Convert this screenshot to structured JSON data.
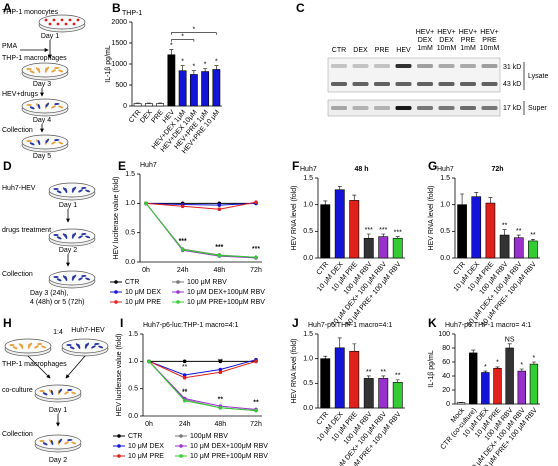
{
  "panel_letters": [
    "A",
    "B",
    "C",
    "D",
    "E",
    "F",
    "G",
    "H",
    "I",
    "J",
    "K"
  ],
  "panel_a": {
    "steps": [
      "THP-1 monocytes",
      "THP-1 macrophages",
      "HEV+drugs",
      "Collection"
    ],
    "days": [
      "Day 1",
      "Day 3",
      "Day 4",
      "Day 5"
    ],
    "pma": "PMA"
  },
  "panel_c": {
    "lanes": [
      [
        "CTR"
      ],
      [
        "DEX"
      ],
      [
        "PRE"
      ],
      [
        "HEV"
      ],
      [
        "HEV+",
        "DEX",
        "1mM"
      ],
      [
        "HEV+",
        "DEX",
        "10mM"
      ],
      [
        "HEV+",
        "PRE",
        "1mM"
      ],
      [
        "HEV+",
        "PRE",
        "10mM"
      ]
    ],
    "sizes": [
      "31 kD",
      "43 kD",
      "17 kD"
    ],
    "fractions": [
      "Lysate",
      "Super"
    ]
  },
  "panel_d": {
    "steps": [
      "Huh7-HEV",
      "drugs treatment",
      "Collection"
    ],
    "days": [
      "Day 1",
      "Day 2"
    ],
    "final_day": [
      "Day 3 (24h),",
      "4 (48h) or 5 (72h)"
    ]
  },
  "panel_h": {
    "ratio": "1:4",
    "cells": [
      "THP-1 macrophages",
      "Huh7-HEV"
    ],
    "steps": [
      "co-culture",
      "Collection"
    ],
    "days": [
      "Day 1",
      "Day 2"
    ]
  },
  "chart_data": [
    {
      "type": "bar",
      "title": "THP-1",
      "y_label": "IL-1β pg/mL",
      "categories": [
        "CTR",
        "DEX",
        "PRE",
        "HEV",
        "HEV+DEX 1μM",
        "HEV+DEX 10μM",
        "HEV+PRE 1μM",
        "HEV+PRE 10 μM"
      ],
      "values": [
        60,
        60,
        60,
        1220,
        840,
        750,
        820,
        870
      ],
      "errors": [
        10,
        10,
        10,
        120,
        120,
        90,
        70,
        90
      ],
      "colors": [
        "#ffffff",
        "#ffffff",
        "#ffffff",
        "#000000",
        "#1414d8",
        "#1414d8",
        "#1414d8",
        "#1414d8"
      ],
      "significance": [
        null,
        null,
        null,
        "*",
        "*",
        "*",
        "*",
        "*"
      ],
      "brackets": [
        {
          "between": [
            "HEV",
            "HEV+DEX 10μM"
          ],
          "text": "*"
        },
        {
          "between": [
            "HEV",
            "HEV+PRE 10 μM"
          ],
          "text": "*"
        }
      ],
      "ylim": [
        0,
        2000
      ],
      "yticks": [
        0,
        500,
        1000,
        1500,
        2000
      ]
    },
    {
      "type": "line",
      "title": "Huh7",
      "y_label": "HEV luciferase value (fold)",
      "categories": [
        "0h",
        "24h",
        "48h",
        "72h"
      ],
      "ylim": [
        0,
        1.5
      ],
      "yticks": [
        {
          "value": 0,
          "label": "0.0"
        },
        {
          "value": 0.5,
          "label": "0.5"
        },
        {
          "value": 1,
          "label": "1.0"
        },
        {
          "value": 1.5,
          "label": "1.5"
        }
      ],
      "series": [
        {
          "name": "CTR",
          "color": "#000000",
          "values": [
            1,
            1,
            1,
            1
          ]
        },
        {
          "name": "10 μM DEX",
          "color": "#1414d8",
          "values": [
            1,
            0.98,
            0.97,
            1.0
          ]
        },
        {
          "name": "10 μM PRE",
          "color": "#e0201b",
          "values": [
            1,
            0.95,
            0.9,
            1.02
          ]
        },
        {
          "name": "100 μM RBV",
          "color": "#777777",
          "values": [
            1,
            0.22,
            0.12,
            0.08
          ],
          "significance": [
            null,
            "***",
            "***",
            "***"
          ]
        },
        {
          "name": "10 μM DEX+100μM RBV",
          "color": "#9932cc",
          "values": [
            1,
            0.2,
            0.1,
            0.07
          ]
        },
        {
          "name": "10 μM PRE+100μM RBV",
          "color": "#33cc33",
          "values": [
            1,
            0.21,
            0.11,
            0.08
          ],
          "significance": [
            null,
            "***",
            "***",
            "***"
          ]
        }
      ]
    },
    {
      "type": "bar",
      "title": "Huh7",
      "subtitle": "48 h",
      "y_label": "HEV RNA level (fold)",
      "categories": [
        "CTR",
        "10 μM DEX",
        "10 μM PRE",
        "100 μM RBV",
        "10 μM DEX+ 100 μM RBV",
        "10 μM PRE+ 100 μM RBV"
      ],
      "values": [
        1.0,
        1.28,
        1.08,
        0.37,
        0.4,
        0.37
      ],
      "errors": [
        0.07,
        0.06,
        0.1,
        0.08,
        0.05,
        0.03
      ],
      "colors": [
        "#000000",
        "#1414d8",
        "#e0201b",
        "#333333",
        "#9932cc",
        "#33cc33"
      ],
      "significance": [
        null,
        null,
        null,
        "***",
        "***",
        "***"
      ],
      "ylim": [
        0,
        1.5
      ],
      "yticks": [
        {
          "value": 0,
          "label": "0.0"
        },
        {
          "value": 0.5,
          "label": "0.5"
        },
        {
          "value": 1,
          "label": "1.0"
        },
        {
          "value": 1.5,
          "label": "1.5"
        }
      ]
    },
    {
      "type": "bar",
      "title": "Huh7",
      "subtitle": "72h",
      "y_label": "HEV RNA level (fold)",
      "categories": [
        "CTR",
        "10 μM DEX",
        "10 μM PRE",
        "100 μM RBV",
        "10 μM DEX+ 100 μM RBV",
        "10 μM PRE+ 100 μM RBV"
      ],
      "values": [
        1.0,
        1.15,
        1.03,
        0.43,
        0.38,
        0.32
      ],
      "errors": [
        0.2,
        0.08,
        0.1,
        0.1,
        0.05,
        0.03
      ],
      "colors": [
        "#000000",
        "#1414d8",
        "#e0201b",
        "#333333",
        "#9932cc",
        "#33cc33"
      ],
      "significance": [
        null,
        null,
        null,
        "**",
        "**",
        "**"
      ],
      "ylim": [
        0,
        1.5
      ],
      "yticks": [
        {
          "value": 0,
          "label": "0.0"
        },
        {
          "value": 0.5,
          "label": "0.5"
        },
        {
          "value": 1,
          "label": "1.0"
        },
        {
          "value": 1.5,
          "label": "1.5"
        }
      ]
    },
    {
      "type": "line",
      "title": "Huh7-p6-luc:THP-1 macro=4:1",
      "y_label": "HEV luciferase value (fold)",
      "categories": [
        "0h",
        "24h",
        "48h",
        "72h"
      ],
      "ylim": [
        0,
        1.5
      ],
      "yticks": [
        {
          "value": 0,
          "label": "0.0"
        },
        {
          "value": 0.5,
          "label": "0.5"
        },
        {
          "value": 1,
          "label": "1.0"
        },
        {
          "value": 1.5,
          "label": "1.5"
        }
      ],
      "series": [
        {
          "name": "CTR",
          "color": "#000000",
          "values": [
            1,
            1,
            1,
            1
          ]
        },
        {
          "name": "10 μM DEX",
          "color": "#1414d8",
          "values": [
            1,
            0.75,
            0.85,
            1.03
          ],
          "significance": [
            null,
            "**",
            "**",
            null
          ]
        },
        {
          "name": "10 μM PRE",
          "color": "#e0201b",
          "values": [
            1,
            0.7,
            0.8,
            1.0
          ]
        },
        {
          "name": "100μM RBV",
          "color": "#777777",
          "values": [
            1,
            0.3,
            0.15,
            0.1
          ],
          "significance": [
            null,
            "**",
            "**",
            "**"
          ]
        },
        {
          "name": "10 μM DEX+100μM RBV",
          "color": "#9932cc",
          "values": [
            1,
            0.32,
            0.18,
            0.12
          ]
        },
        {
          "name": "10 μM PRE+100μM RBV",
          "color": "#33cc33",
          "values": [
            1,
            0.28,
            0.15,
            0.1
          ],
          "significance": [
            null,
            "**",
            "**",
            "**"
          ]
        }
      ]
    },
    {
      "type": "bar",
      "title": "Huh7-p6:THP-1 macro=4:1",
      "y_label": "HEV RNA level (fold)",
      "categories": [
        "CTR",
        "10 μM DEX",
        "10 μM PRE",
        "100 μM RBV",
        "10 μM DEX+ 100 μM RBV",
        "10 μM PRE+ 100 μM RBV"
      ],
      "values": [
        1.0,
        1.22,
        1.15,
        0.6,
        0.6,
        0.52
      ],
      "errors": [
        0.05,
        0.2,
        0.15,
        0.05,
        0.05,
        0.05
      ],
      "colors": [
        "#000000",
        "#1414d8",
        "#e0201b",
        "#333333",
        "#9932cc",
        "#33cc33"
      ],
      "significance": [
        null,
        null,
        null,
        "**",
        "**",
        "**"
      ],
      "ylim": [
        0,
        1.5
      ],
      "yticks": [
        {
          "value": 0,
          "label": "0.0"
        },
        {
          "value": 0.5,
          "label": "0.5"
        },
        {
          "value": 1,
          "label": "1.0"
        },
        {
          "value": 1.5,
          "label": "1.5"
        }
      ]
    },
    {
      "type": "bar",
      "title": "Huh7-p6:THP-1 macro= 4:1",
      "y_label": "IL-1β pg/mL",
      "categories": [
        "Mock",
        "CTR (co-culture)",
        "10 μM DEX",
        "10 μM PRE",
        "100 μM RBV",
        "10 μM DEX+ 100 μM RBV",
        "10 μM PRE+ 100 μM RBV"
      ],
      "values": [
        2,
        73,
        45,
        51,
        80,
        47,
        57
      ],
      "errors": [
        0.5,
        4,
        2,
        2,
        6,
        3,
        3
      ],
      "colors": [
        "#ffffff",
        "#000000",
        "#1414d8",
        "#e0201b",
        "#333333",
        "#9932cc",
        "#33cc33"
      ],
      "significance": [
        null,
        null,
        "*",
        "*",
        "NS",
        "*",
        "*"
      ],
      "ylim": [
        0,
        100
      ],
      "yticks": [
        0,
        20,
        40,
        60,
        80,
        100
      ]
    }
  ]
}
